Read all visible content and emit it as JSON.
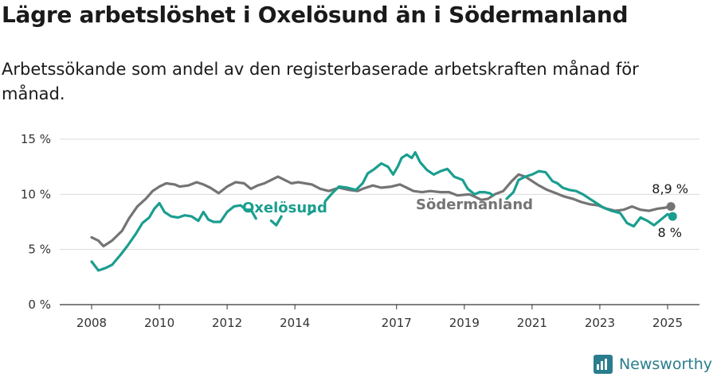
{
  "title": "Lägre arbetslöshet i Oxelösund än i Södermanland",
  "subtitle": "Arbetssökande som andel av den registerbaserade arbetskraften månad för månad.",
  "brand": {
    "name": "Newsworthy",
    "logo_icon": "newsworthy-logo-icon"
  },
  "colors": {
    "oxelosund": "#1a9e8f",
    "sodermanland": "#747474",
    "grid": "#d9d9d9",
    "axis": "#333333"
  },
  "chart_data": {
    "type": "line",
    "title": "Lägre arbetslöshet i Oxelösund än i Södermanland",
    "ylim": [
      0,
      15
    ],
    "yticks": [
      0,
      5,
      10,
      15
    ],
    "ytick_labels": [
      "0 %",
      "5 %",
      "10 %",
      "15 %"
    ],
    "xlim": [
      2007.5,
      2025.6
    ],
    "xticks": [
      2008,
      2010,
      2012,
      2014,
      2017,
      2019,
      2021,
      2023,
      2025
    ],
    "xtick_labels": [
      "2008",
      "2010",
      "2012",
      "2014",
      "2017",
      "2019",
      "2021",
      "2023",
      "2025"
    ],
    "grid": true,
    "legend": "inline labels",
    "series": [
      {
        "name": "Södermanland",
        "color": "#747474",
        "end_label": "8,9 %",
        "points": [
          [
            2008.0,
            6.1
          ],
          [
            2008.2,
            5.8
          ],
          [
            2008.35,
            5.3
          ],
          [
            2008.6,
            5.8
          ],
          [
            2008.9,
            6.7
          ],
          [
            2009.1,
            7.8
          ],
          [
            2009.35,
            8.9
          ],
          [
            2009.6,
            9.6
          ],
          [
            2009.8,
            10.3
          ],
          [
            2010.0,
            10.7
          ],
          [
            2010.2,
            11.0
          ],
          [
            2010.45,
            10.9
          ],
          [
            2010.6,
            10.7
          ],
          [
            2010.85,
            10.8
          ],
          [
            2011.1,
            11.1
          ],
          [
            2011.3,
            10.9
          ],
          [
            2011.5,
            10.6
          ],
          [
            2011.75,
            10.1
          ],
          [
            2012.0,
            10.7
          ],
          [
            2012.25,
            11.1
          ],
          [
            2012.5,
            11.0
          ],
          [
            2012.7,
            10.5
          ],
          [
            2012.9,
            10.8
          ],
          [
            2013.1,
            11.0
          ],
          [
            2013.3,
            11.3
          ],
          [
            2013.5,
            11.6
          ],
          [
            2013.7,
            11.3
          ],
          [
            2013.9,
            11.0
          ],
          [
            2014.1,
            11.1
          ],
          [
            2014.3,
            11.0
          ],
          [
            2014.5,
            10.9
          ],
          [
            2014.75,
            10.5
          ],
          [
            2015.0,
            10.3
          ],
          [
            2015.3,
            10.6
          ],
          [
            2015.6,
            10.4
          ],
          [
            2015.85,
            10.3
          ],
          [
            2016.0,
            10.5
          ],
          [
            2016.3,
            10.8
          ],
          [
            2016.55,
            10.6
          ],
          [
            2016.85,
            10.7
          ],
          [
            2017.1,
            10.9
          ],
          [
            2017.3,
            10.6
          ],
          [
            2017.5,
            10.3
          ],
          [
            2017.75,
            10.2
          ],
          [
            2018.0,
            10.3
          ],
          [
            2018.3,
            10.2
          ],
          [
            2018.55,
            10.2
          ],
          [
            2018.8,
            9.9
          ],
          [
            2019.15,
            10.0
          ],
          [
            2019.3,
            9.8
          ],
          [
            2019.5,
            9.5
          ],
          [
            2019.7,
            9.6
          ],
          [
            2019.9,
            10.0
          ],
          [
            2020.15,
            10.3
          ],
          [
            2020.4,
            11.2
          ],
          [
            2020.6,
            11.8
          ],
          [
            2020.8,
            11.6
          ],
          [
            2021.0,
            11.2
          ],
          [
            2021.2,
            10.8
          ],
          [
            2021.45,
            10.4
          ],
          [
            2021.7,
            10.1
          ],
          [
            2021.95,
            9.8
          ],
          [
            2022.2,
            9.6
          ],
          [
            2022.45,
            9.3
          ],
          [
            2022.7,
            9.1
          ],
          [
            2022.95,
            9.0
          ],
          [
            2023.2,
            8.7
          ],
          [
            2023.45,
            8.5
          ],
          [
            2023.7,
            8.6
          ],
          [
            2023.95,
            8.9
          ],
          [
            2024.2,
            8.6
          ],
          [
            2024.45,
            8.5
          ],
          [
            2024.7,
            8.7
          ],
          [
            2024.95,
            8.8
          ],
          [
            2025.05,
            8.9
          ]
        ]
      },
      {
        "name": "Oxelösund",
        "color": "#1a9e8f",
        "end_label": "8 %",
        "points": [
          [
            2008.0,
            3.9
          ],
          [
            2008.2,
            3.1
          ],
          [
            2008.4,
            3.3
          ],
          [
            2008.6,
            3.6
          ],
          [
            2008.85,
            4.5
          ],
          [
            2009.05,
            5.3
          ],
          [
            2009.3,
            6.4
          ],
          [
            2009.5,
            7.4
          ],
          [
            2009.7,
            7.9
          ],
          [
            2009.85,
            8.7
          ],
          [
            2010.0,
            9.2
          ],
          [
            2010.15,
            8.4
          ],
          [
            2010.35,
            8.0
          ],
          [
            2010.55,
            7.9
          ],
          [
            2010.75,
            8.1
          ],
          [
            2010.95,
            8.0
          ],
          [
            2011.15,
            7.6
          ],
          [
            2011.3,
            8.4
          ],
          [
            2011.45,
            7.7
          ],
          [
            2011.6,
            7.5
          ],
          [
            2011.8,
            7.5
          ],
          [
            2012.0,
            8.4
          ],
          [
            2012.2,
            8.9
          ],
          [
            2012.4,
            9.0
          ],
          [
            2012.55,
            8.6
          ],
          [
            2012.7,
            8.6
          ],
          [
            2012.85,
            7.8
          ],
          [
            null,
            null
          ],
          [
            2013.3,
            7.6
          ],
          [
            2013.45,
            7.2
          ],
          [
            2013.6,
            8.0
          ],
          [
            null,
            null
          ],
          [
            2014.4,
            8.2
          ],
          [
            2014.55,
            8.5
          ],
          [
            null,
            null
          ],
          [
            2014.9,
            9.4
          ],
          [
            2015.1,
            10.1
          ],
          [
            2015.3,
            10.7
          ],
          [
            2015.55,
            10.6
          ],
          [
            2015.8,
            10.4
          ],
          [
            2016.0,
            11.0
          ],
          [
            2016.15,
            11.9
          ],
          [
            2016.35,
            12.3
          ],
          [
            2016.55,
            12.8
          ],
          [
            2016.75,
            12.5
          ],
          [
            2016.9,
            11.8
          ],
          [
            2017.05,
            12.6
          ],
          [
            2017.15,
            13.3
          ],
          [
            2017.3,
            13.6
          ],
          [
            2017.45,
            13.3
          ],
          [
            2017.55,
            13.8
          ],
          [
            2017.7,
            12.9
          ],
          [
            2017.9,
            12.2
          ],
          [
            2018.1,
            11.8
          ],
          [
            2018.3,
            12.1
          ],
          [
            2018.5,
            12.3
          ],
          [
            2018.7,
            11.6
          ],
          [
            2018.95,
            11.3
          ],
          [
            2019.1,
            10.5
          ],
          [
            2019.3,
            10.0
          ],
          [
            2019.45,
            10.2
          ],
          [
            2019.6,
            10.2
          ],
          [
            2019.75,
            10.1
          ],
          [
            2019.85,
            9.9
          ],
          [
            null,
            null
          ],
          [
            2020.25,
            9.6
          ],
          [
            2020.45,
            10.2
          ],
          [
            2020.6,
            11.3
          ],
          [
            2020.8,
            11.6
          ],
          [
            2021.0,
            11.8
          ],
          [
            2021.2,
            12.1
          ],
          [
            2021.4,
            12.0
          ],
          [
            2021.6,
            11.2
          ],
          [
            2021.75,
            11.0
          ],
          [
            2021.9,
            10.6
          ],
          [
            2022.1,
            10.4
          ],
          [
            2022.3,
            10.3
          ],
          [
            2022.5,
            10.0
          ],
          [
            2022.7,
            9.6
          ],
          [
            2022.9,
            9.2
          ],
          [
            2023.1,
            8.8
          ],
          [
            2023.35,
            8.5
          ],
          [
            2023.6,
            8.3
          ],
          [
            2023.8,
            7.4
          ],
          [
            2024.0,
            7.1
          ],
          [
            2024.2,
            7.9
          ],
          [
            2024.4,
            7.6
          ],
          [
            2024.6,
            7.2
          ],
          [
            2024.8,
            7.7
          ],
          [
            2025.0,
            8.2
          ],
          [
            2025.1,
            8.0
          ]
        ]
      }
    ]
  }
}
